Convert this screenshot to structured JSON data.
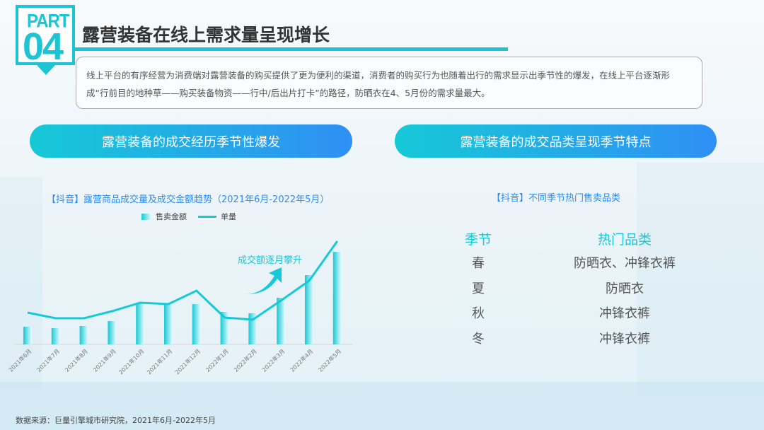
{
  "logo": {
    "part": "PART",
    "number": "04"
  },
  "title": "露营装备在线上需求量呈现增长",
  "description": "线上平台的有序经营为消费端对露营装备的购买提供了更为便利的渠道，消费者的购买行为也随着出行的需求显示出季节性的爆发，在线上平台逐渐形成“行前目的地种草——购买装备物资——行中/后出片打卡”的路径，防晒衣在4、5月份的需求量最大。",
  "left_section": {
    "pill": "露营装备的成交经历季节性爆发"
  },
  "right_section": {
    "pill": "露营装备的成交品类呈现季节特点",
    "table_title": "【抖音】不同季节热门售卖品类",
    "headers": [
      "季节",
      "热门品类"
    ],
    "rows": [
      [
        "春",
        "防晒衣、冲锋衣裤"
      ],
      [
        "夏",
        "防晒衣"
      ],
      [
        "秋",
        "冲锋衣裤"
      ],
      [
        "冬",
        "冲锋衣裤"
      ]
    ]
  },
  "chart_data": {
    "type": "bar+line",
    "title": "【抖音】露营商品成交量及成交金额趋势（2021年6月-2022年5月）",
    "categories": [
      "2021年6月",
      "2021年7月",
      "2021年8月",
      "2021年9月",
      "2021年10月",
      "2021年11月",
      "2021年12月",
      "2022年1月",
      "2022年2月",
      "2022年3月",
      "2022年4月",
      "2022年5月"
    ],
    "series": [
      {
        "name": "售卖金额",
        "type": "bar",
        "values": [
          25,
          23,
          26,
          33,
          58,
          57,
          57,
          46,
          44,
          66,
          98,
          131
        ]
      },
      {
        "name": "单量",
        "type": "line",
        "values": [
          45,
          37,
          37,
          47,
          59,
          57,
          76,
          38,
          35,
          62,
          90,
          146
        ]
      }
    ],
    "annotation": "成交额逐月攀升",
    "color": "#16c9d6",
    "grid": false
  },
  "source": "数据来源：巨量引擎城市研究院，2021年6月-2022年5月"
}
